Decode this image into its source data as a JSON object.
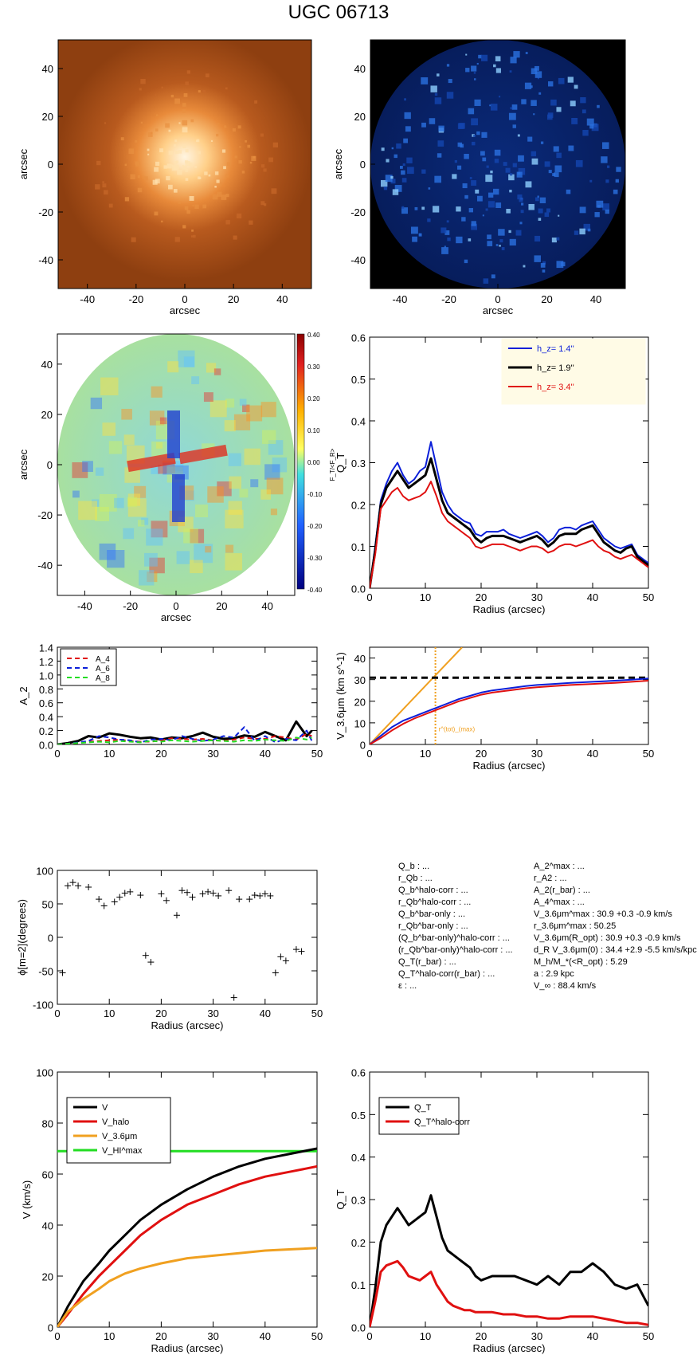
{
  "title": "UGC 06713",
  "colors": {
    "blue": "#0b1fd9",
    "black": "#000000",
    "red": "#e01010",
    "orange": "#f0a020",
    "green": "#22dd22"
  },
  "images": [
    {
      "name": "optical-image",
      "xlabel": "arcsec",
      "ylabel": "arcsec",
      "xticks": [
        "-40",
        "-20",
        "0",
        "20",
        "40"
      ],
      "yticks": [
        "40",
        "20",
        "0",
        "-20",
        "-40"
      ],
      "colormap": "orange"
    },
    {
      "name": "blue-image",
      "xlabel": "arcsec",
      "ylabel": "arcsec",
      "xticks": [
        "-40",
        "-20",
        "0",
        "20",
        "40"
      ],
      "yticks": [
        "40",
        "20",
        "0",
        "-20",
        "-40"
      ],
      "colormap": "blue"
    },
    {
      "name": "force-map",
      "xlabel": "arcsec",
      "ylabel": "arcsec",
      "xticks": [
        "-40",
        "-20",
        "0",
        "20",
        "40"
      ],
      "yticks": [
        "40",
        "20",
        "0",
        "-20",
        "-40"
      ],
      "colorbar": {
        "label": "F_T/<F_R>",
        "ticks": [
          "0.40",
          "0.30",
          "0.20",
          "0.10",
          "0.00",
          "-0.10",
          "-0.20",
          "-0.30",
          "-0.40"
        ]
      }
    }
  ],
  "chart_data": [
    {
      "id": "qt-hz",
      "type": "line",
      "xlabel": "Radius (arcsec)",
      "ylabel": "Q_T",
      "xlim": [
        0,
        50
      ],
      "ylim": [
        0,
        0.6
      ],
      "xticks": [
        0,
        10,
        20,
        30,
        40,
        50
      ],
      "yticks": [
        0.0,
        0.1,
        0.2,
        0.3,
        0.4,
        0.5,
        0.6
      ],
      "tick_decimals": 1,
      "legend": "top-right",
      "x": [
        0,
        1,
        2,
        3,
        4,
        5,
        6,
        7,
        8,
        9,
        10,
        11,
        12,
        13,
        14,
        15,
        16,
        17,
        18,
        19,
        20,
        21,
        22,
        23,
        24,
        25,
        26,
        27,
        28,
        29,
        30,
        31,
        32,
        33,
        34,
        35,
        36,
        37,
        38,
        39,
        40,
        41,
        42,
        43,
        44,
        45,
        46,
        47,
        48,
        49,
        50
      ],
      "series": [
        {
          "name": "1.4''",
          "label": "h_z= 1.4''",
          "color": "blue",
          "width": 2,
          "values": [
            0,
            0.1,
            0.21,
            0.25,
            0.28,
            0.3,
            0.27,
            0.25,
            0.26,
            0.28,
            0.29,
            0.35,
            0.29,
            0.23,
            0.2,
            0.18,
            0.17,
            0.16,
            0.155,
            0.13,
            0.125,
            0.135,
            0.135,
            0.135,
            0.14,
            0.13,
            0.125,
            0.12,
            0.125,
            0.13,
            0.135,
            0.125,
            0.11,
            0.12,
            0.14,
            0.145,
            0.145,
            0.14,
            0.15,
            0.155,
            0.16,
            0.14,
            0.12,
            0.11,
            0.1,
            0.095,
            0.1,
            0.105,
            0.08,
            0.07,
            0.06
          ]
        },
        {
          "name": "1.9''",
          "label": "h_z= 1.9''",
          "color": "black",
          "width": 3,
          "values": [
            0,
            0.09,
            0.2,
            0.24,
            0.26,
            0.28,
            0.26,
            0.24,
            0.25,
            0.26,
            0.27,
            0.31,
            0.26,
            0.21,
            0.18,
            0.17,
            0.16,
            0.15,
            0.14,
            0.12,
            0.11,
            0.12,
            0.125,
            0.125,
            0.125,
            0.12,
            0.115,
            0.11,
            0.115,
            0.12,
            0.125,
            0.115,
            0.1,
            0.11,
            0.125,
            0.13,
            0.13,
            0.13,
            0.14,
            0.145,
            0.15,
            0.13,
            0.11,
            0.1,
            0.09,
            0.085,
            0.095,
            0.1,
            0.075,
            0.065,
            0.055
          ]
        },
        {
          "name": "3.4''",
          "label": "h_z= 3.4''",
          "color": "red",
          "width": 2,
          "values": [
            0,
            0.08,
            0.19,
            0.21,
            0.23,
            0.24,
            0.22,
            0.21,
            0.215,
            0.22,
            0.23,
            0.255,
            0.22,
            0.18,
            0.16,
            0.15,
            0.14,
            0.13,
            0.12,
            0.1,
            0.095,
            0.1,
            0.105,
            0.105,
            0.105,
            0.1,
            0.095,
            0.09,
            0.095,
            0.1,
            0.1,
            0.095,
            0.085,
            0.09,
            0.1,
            0.105,
            0.105,
            0.1,
            0.105,
            0.11,
            0.115,
            0.1,
            0.09,
            0.085,
            0.075,
            0.07,
            0.075,
            0.08,
            0.07,
            0.06,
            0.05
          ]
        }
      ]
    },
    {
      "id": "amplitudes",
      "type": "line",
      "xlabel": "",
      "ylabel": "A_2",
      "xlim": [
        0,
        50
      ],
      "ylim": [
        0,
        1.4
      ],
      "xticks": [
        0,
        10,
        20,
        30,
        40,
        50
      ],
      "yticks": [
        0.0,
        0.2,
        0.4,
        0.6,
        0.8,
        1.0,
        1.2,
        1.4
      ],
      "tick_decimals": 1,
      "legend": "top-left",
      "x": [
        0,
        2,
        4,
        6,
        8,
        10,
        12,
        14,
        16,
        18,
        20,
        22,
        24,
        26,
        28,
        30,
        32,
        34,
        36,
        38,
        40,
        42,
        44,
        46,
        48,
        49
      ],
      "series": [
        {
          "name": "A_2",
          "label": "",
          "color": "black",
          "width": 3,
          "values": [
            0,
            0.02,
            0.05,
            0.12,
            0.1,
            0.16,
            0.14,
            0.11,
            0.09,
            0.1,
            0.07,
            0.1,
            0.09,
            0.12,
            0.17,
            0.11,
            0.08,
            0.09,
            0.13,
            0.11,
            0.18,
            0.12,
            0.06,
            0.33,
            0.12,
            0.2
          ]
        },
        {
          "name": "A_4",
          "label": "A_4",
          "color": "red",
          "width": 2,
          "dash": "6,4",
          "values": [
            0,
            0.01,
            0.02,
            0.04,
            0.05,
            0.06,
            0.07,
            0.05,
            0.04,
            0.04,
            0.06,
            0.09,
            0.08,
            0.07,
            0.08,
            0.06,
            0.05,
            0.07,
            0.1,
            0.08,
            0.08,
            0.12,
            0.1,
            0.07,
            0.15,
            0.12
          ]
        },
        {
          "name": "A_6",
          "label": "A_6",
          "color": "blue",
          "width": 2,
          "dash": "6,4",
          "values": [
            0,
            0.01,
            0.03,
            0.05,
            0.12,
            0.1,
            0.07,
            0.06,
            0.03,
            0.07,
            0.08,
            0.06,
            0.12,
            0.08,
            0.05,
            0.07,
            0.12,
            0.1,
            0.25,
            0.05,
            0.12,
            0.03,
            0.08,
            0.06,
            0.2,
            0.05
          ]
        },
        {
          "name": "A_8",
          "label": "A_8",
          "color": "green",
          "width": 2,
          "dash": "6,4",
          "values": [
            0,
            0.01,
            0.02,
            0.03,
            0.04,
            0.03,
            0.05,
            0.04,
            0.03,
            0.05,
            0.04,
            0.06,
            0.05,
            0.04,
            0.05,
            0.06,
            0.05,
            0.04,
            0.06,
            0.05,
            0.07,
            0.06,
            0.05,
            0.1,
            0.07,
            0.1
          ]
        }
      ]
    },
    {
      "id": "v36",
      "type": "line",
      "xlabel": "Radius (arcsec)",
      "ylabel": "V_3.6μm (km s^-1)",
      "xlim": [
        0,
        50
      ],
      "ylim": [
        0,
        45
      ],
      "xticks": [
        0,
        10,
        20,
        30,
        40,
        50
      ],
      "yticks": [
        0,
        10,
        20,
        30,
        40
      ],
      "tick_decimals": 0,
      "vline": {
        "x": 11.8,
        "label": "r^(tot)_(max)"
      },
      "hline": {
        "y": 30.9
      },
      "slope_line": {
        "x": [
          0,
          16.6
        ],
        "y": [
          0,
          45
        ]
      },
      "x": [
        0,
        2,
        4,
        6,
        8,
        10,
        12,
        14,
        16,
        18,
        20,
        22,
        25,
        28,
        30,
        33,
        36,
        40,
        44,
        47,
        50
      ],
      "series": [
        {
          "name": "blue",
          "color": "blue",
          "width": 2,
          "values": [
            0,
            4,
            8,
            11,
            13,
            15,
            17,
            19,
            21,
            22.5,
            24,
            25,
            26,
            27,
            27.5,
            28,
            28.5,
            29,
            29.5,
            30,
            30.5
          ]
        },
        {
          "name": "red",
          "color": "red",
          "width": 2,
          "values": [
            0,
            3,
            6.5,
            9.5,
            12,
            14,
            16,
            18,
            20,
            21.5,
            23,
            24,
            25,
            26,
            26.5,
            27,
            27.5,
            28,
            28.5,
            29,
            29.5
          ]
        }
      ]
    },
    {
      "id": "phase",
      "type": "scatter",
      "xlabel": "Radius (arcsec)",
      "ylabel": "ϕ[m=2](degrees)",
      "xlim": [
        0,
        50
      ],
      "ylim": [
        -100,
        100
      ],
      "xticks": [
        0,
        10,
        20,
        30,
        40,
        50
      ],
      "yticks": [
        100,
        50,
        0,
        -50,
        -100
      ],
      "tick_decimals": 0,
      "points": [
        [
          1,
          -53
        ],
        [
          2,
          77
        ],
        [
          3,
          82
        ],
        [
          4,
          77
        ],
        [
          6,
          75
        ],
        [
          8,
          57
        ],
        [
          9,
          47
        ],
        [
          11,
          53
        ],
        [
          12,
          60
        ],
        [
          13,
          66
        ],
        [
          14,
          68
        ],
        [
          16,
          63
        ],
        [
          17,
          -27
        ],
        [
          18,
          -37
        ],
        [
          20,
          65
        ],
        [
          21,
          55
        ],
        [
          23,
          33
        ],
        [
          24,
          70
        ],
        [
          25,
          67
        ],
        [
          26,
          60
        ],
        [
          28,
          65
        ],
        [
          29,
          68
        ],
        [
          30,
          66
        ],
        [
          31,
          62
        ],
        [
          33,
          70
        ],
        [
          34,
          -90
        ],
        [
          35,
          57
        ],
        [
          37,
          57
        ],
        [
          38,
          63
        ],
        [
          39,
          62
        ],
        [
          40,
          65
        ],
        [
          41,
          62
        ],
        [
          42,
          -53
        ],
        [
          43,
          -29
        ],
        [
          44,
          -35
        ],
        [
          46,
          -18
        ],
        [
          47,
          -21
        ]
      ]
    },
    {
      "id": "rotation",
      "type": "line",
      "xlabel": "Radius (arcsec)",
      "ylabel": "V (km/s)",
      "xlim": [
        0,
        50
      ],
      "ylim": [
        0,
        100
      ],
      "xticks": [
        0,
        10,
        20,
        30,
        40,
        50
      ],
      "yticks": [
        0,
        20,
        40,
        60,
        80,
        100
      ],
      "tick_decimals": 0,
      "legend": "top-left",
      "x": [
        0,
        2,
        5,
        8,
        10,
        13,
        16,
        20,
        25,
        30,
        35,
        40,
        45,
        50
      ],
      "series": [
        {
          "name": "V",
          "label": "V",
          "color": "black",
          "width": 3,
          "values": [
            0,
            8,
            18,
            25,
            30,
            36,
            42,
            48,
            54,
            59,
            63,
            66,
            68,
            70
          ]
        },
        {
          "name": "V_halo",
          "label": "V_halo",
          "color": "red",
          "width": 3,
          "values": [
            0,
            5,
            13,
            20,
            24,
            30,
            36,
            42,
            48,
            52,
            56,
            59,
            61,
            63
          ]
        },
        {
          "name": "V_3.6μm",
          "label": "V_3.6μm",
          "color": "orange",
          "width": 3,
          "values": [
            0,
            6,
            11,
            15,
            18,
            21,
            23,
            25,
            27,
            28,
            29,
            30,
            30.5,
            31
          ]
        }
      ],
      "hline": {
        "y": 69,
        "label": "V_HI^max",
        "color": "green"
      }
    },
    {
      "id": "qt-halo",
      "type": "line",
      "xlabel": "Radius (arcsec)",
      "ylabel": "Q_T",
      "xlim": [
        0,
        50
      ],
      "ylim": [
        0,
        0.6
      ],
      "xticks": [
        0,
        10,
        20,
        30,
        40,
        50
      ],
      "yticks": [
        0.0,
        0.1,
        0.2,
        0.3,
        0.4,
        0.5,
        0.6
      ],
      "tick_decimals": 1,
      "legend": "top-left",
      "x": [
        0,
        1,
        2,
        3,
        4,
        5,
        6,
        7,
        8,
        9,
        10,
        11,
        12,
        13,
        14,
        15,
        16,
        17,
        18,
        19,
        20,
        22,
        24,
        26,
        28,
        30,
        32,
        34,
        36,
        38,
        40,
        42,
        44,
        46,
        48,
        50
      ],
      "series": [
        {
          "name": "Q_T",
          "label": "Q_T",
          "color": "black",
          "width": 3,
          "values": [
            0,
            0.09,
            0.2,
            0.24,
            0.26,
            0.28,
            0.26,
            0.24,
            0.25,
            0.26,
            0.27,
            0.31,
            0.26,
            0.21,
            0.18,
            0.17,
            0.16,
            0.15,
            0.14,
            0.12,
            0.11,
            0.12,
            0.12,
            0.12,
            0.11,
            0.1,
            0.12,
            0.1,
            0.13,
            0.13,
            0.15,
            0.13,
            0.1,
            0.09,
            0.1,
            0.05
          ]
        },
        {
          "name": "Q_T^halo-corr",
          "label": "Q_T^halo-corr",
          "color": "red",
          "width": 3,
          "values": [
            0,
            0.06,
            0.13,
            0.145,
            0.15,
            0.155,
            0.14,
            0.12,
            0.115,
            0.11,
            0.12,
            0.13,
            0.1,
            0.08,
            0.06,
            0.05,
            0.045,
            0.04,
            0.04,
            0.035,
            0.035,
            0.035,
            0.03,
            0.03,
            0.025,
            0.025,
            0.02,
            0.02,
            0.025,
            0.025,
            0.025,
            0.02,
            0.015,
            0.01,
            0.01,
            0.005
          ]
        }
      ]
    }
  ],
  "params": {
    "left": [
      "Q_b : ...",
      "r_Qb : ...",
      "Q_b^halo-corr : ...",
      "r_Qb^halo-corr : ...",
      "Q_b^bar-only : ...",
      "r_Qb^bar-only : ...",
      "(Q_b^bar-only)^halo-corr : ...",
      "(r_Qb^bar-only)^halo-corr : ...",
      "Q_T(r_bar) : ...",
      "Q_T^halo-corr(r_bar) : ...",
      "ε : ..."
    ],
    "right": [
      "A_2^max : ...",
      "r_A2 : ...",
      "A_2(r_bar) : ...",
      "A_4^max : ...",
      "V_3.6μm^max : 30.9 +0.3 -0.9 km/s",
      "r_3.6μm^max : 50.25",
      "V_3.6μm(R_opt) : 30.9 +0.3 -0.9 km/s",
      "d_R V_3.6μm(0) : 34.4 +2.9 -5.5 km/s/kpc",
      "M_h/M_*(<R_opt) : 5.29",
      "a : 2.9 kpc",
      "V_∞ : 88.4 km/s"
    ]
  }
}
